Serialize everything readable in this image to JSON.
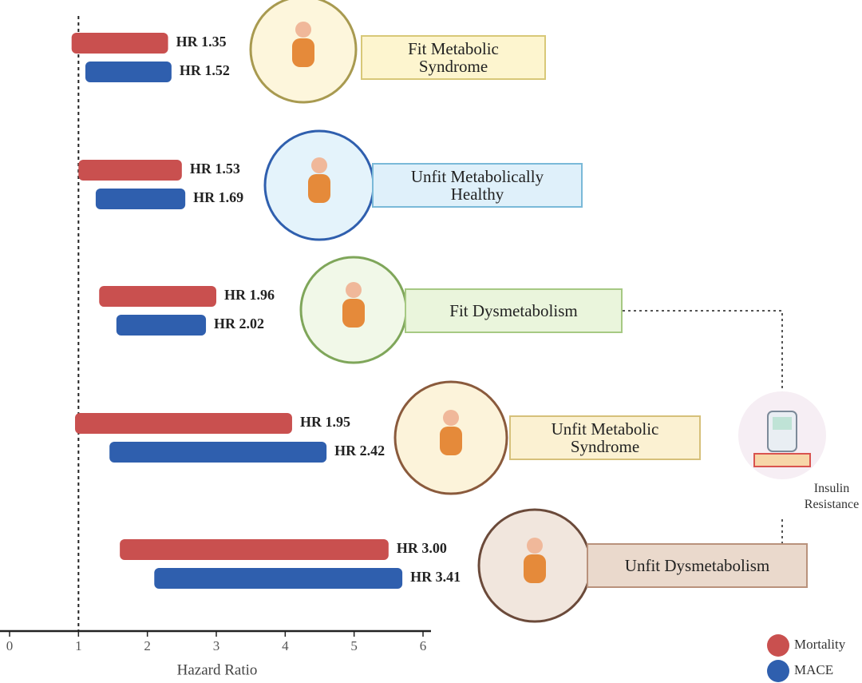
{
  "chart_data": {
    "type": "floating-bar",
    "categories": [
      "Fit Metabolic Syndrome",
      "Unfit Metabolically Healthy",
      "Fit Dysmetabolism",
      "Unfit Metabolic Syndrome",
      "Unfit Dysmetabolism"
    ],
    "series": [
      {
        "name": "Mortality",
        "color": "#c9504f",
        "low": [
          0.9,
          1.0,
          1.3,
          0.95,
          1.6
        ],
        "high": [
          2.3,
          2.5,
          3.0,
          4.1,
          5.5
        ],
        "labels": [
          "HR 1.35",
          "HR 1.53",
          "HR 1.96",
          "HR 1.95",
          "HR 3.00"
        ]
      },
      {
        "name": "MACE",
        "color": "#2f5fae",
        "low": [
          1.1,
          1.25,
          1.55,
          1.45,
          2.1
        ],
        "high": [
          2.35,
          2.55,
          2.85,
          4.6,
          5.7
        ],
        "labels": [
          "HR 1.52",
          "HR 1.69",
          "HR 2.02",
          "HR 2.42",
          "HR 3.41"
        ]
      }
    ],
    "reference_line": 1,
    "xlabel": "Hazard Ratio",
    "xlim": [
      0,
      6
    ],
    "xticks": [
      0,
      1,
      2,
      3,
      4,
      5,
      6
    ],
    "annotation": "Insulin Resistance"
  }
}
